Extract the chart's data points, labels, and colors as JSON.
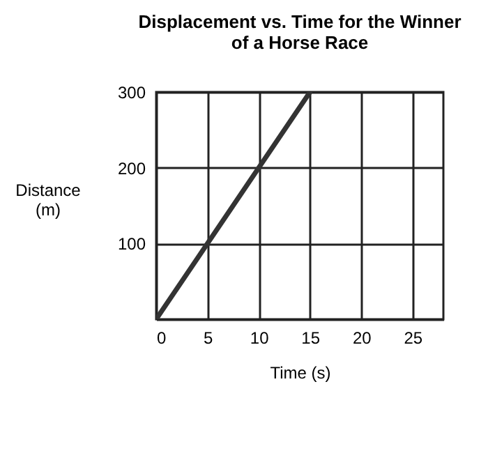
{
  "chart_data": {
    "type": "line",
    "title": "Displacement vs. Time for the Winner\nof a Horse Race",
    "xlabel": "Time (s)",
    "ylabel": "Distance\n(m)",
    "x": [
      0,
      15
    ],
    "series": [
      {
        "color": "#333333",
        "values": [
          0,
          300
        ]
      }
    ],
    "xlim": [
      0,
      28
    ],
    "xticks": [
      0,
      5,
      10,
      15,
      20,
      25
    ],
    "ylim": [
      0,
      300
    ],
    "yticks": [
      {
        "value": 0,
        "label": null
      },
      100,
      200,
      300
    ],
    "grid": true,
    "legend": false,
    "marker": "none",
    "line_style": "solid"
  }
}
